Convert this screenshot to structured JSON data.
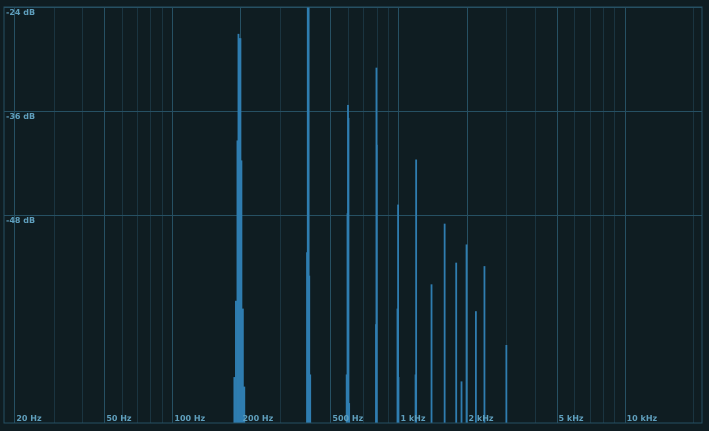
{
  "chart_data": {
    "type": "bar",
    "x_scale": "log",
    "xlim": [
      18,
      22000
    ],
    "ylim": [
      -72,
      -24
    ],
    "x_ticks": [
      {
        "value": 20,
        "label": "20 Hz"
      },
      {
        "value": 50,
        "label": "50 Hz"
      },
      {
        "value": 100,
        "label": "100 Hz"
      },
      {
        "value": 200,
        "label": "200 Hz"
      },
      {
        "value": 500,
        "label": "500 Hz"
      },
      {
        "value": 1000,
        "label": "1 kHz"
      },
      {
        "value": 2000,
        "label": "2 kHz"
      },
      {
        "value": 5000,
        "label": "5 kHz"
      },
      {
        "value": 10000,
        "label": "10 kHz"
      }
    ],
    "y_ticks": [
      {
        "value": -24,
        "label": "-24 dB"
      },
      {
        "value": -36,
        "label": "-36 dB"
      },
      {
        "value": -48,
        "label": "-48 dB"
      }
    ],
    "grid": true,
    "colors": {
      "background": "#0f1d22",
      "minor_grid": "#1a3440",
      "major_grid": "#265063",
      "bar": "#2f7db0",
      "label": "#5f9fbd"
    },
    "bins": [
      {
        "hz": 188,
        "db": -66.7
      },
      {
        "hz": 191,
        "db": -57.9
      },
      {
        "hz": 194,
        "db": -39.4
      },
      {
        "hz": 196,
        "db": -27.1
      },
      {
        "hz": 198,
        "db": -27.6
      },
      {
        "hz": 200,
        "db": -27.6
      },
      {
        "hz": 202,
        "db": -41.7
      },
      {
        "hz": 205,
        "db": -58.8
      },
      {
        "hz": 208,
        "db": -67.8
      },
      {
        "hz": 394,
        "db": -52.3
      },
      {
        "hz": 397,
        "db": -24.0
      },
      {
        "hz": 400,
        "db": -24.0
      },
      {
        "hz": 403,
        "db": -55.0
      },
      {
        "hz": 407,
        "db": -66.4
      },
      {
        "hz": 590,
        "db": -66.4
      },
      {
        "hz": 595,
        "db": -47.8
      },
      {
        "hz": 598,
        "db": -35.3
      },
      {
        "hz": 601,
        "db": -36.8
      },
      {
        "hz": 605,
        "db": -69.7
      },
      {
        "hz": 795,
        "db": -60.6
      },
      {
        "hz": 799,
        "db": -31.0
      },
      {
        "hz": 802,
        "db": -39.9
      },
      {
        "hz": 990,
        "db": -58.8
      },
      {
        "hz": 996,
        "db": -46.8
      },
      {
        "hz": 1000,
        "db": -66.7
      },
      {
        "hz": 1190,
        "db": -66.4
      },
      {
        "hz": 1197,
        "db": -41.6
      },
      {
        "hz": 1400,
        "db": -56.0
      },
      {
        "hz": 1600,
        "db": -49.0
      },
      {
        "hz": 1800,
        "db": -53.5
      },
      {
        "hz": 1900,
        "db": -67.2
      },
      {
        "hz": 2000,
        "db": -51.4
      },
      {
        "hz": 2200,
        "db": -59.1
      },
      {
        "hz": 2400,
        "db": -53.9
      },
      {
        "hz": 3000,
        "db": -63.0
      }
    ]
  }
}
